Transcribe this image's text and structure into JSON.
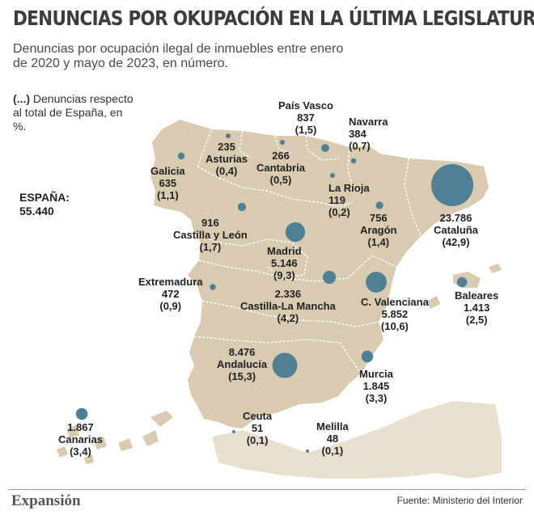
{
  "title": "DENUNCIAS POR OKUPACIÓN EN LA ÚLTIMA LEGISLATURA",
  "subtitle": "Denuncias por ocupación ilegal de inmuebles entre enero de 2020 y mayo de 2023, en número.",
  "legend": {
    "marker": "(...)",
    "text": "Denuncias respecto al total de España, en %."
  },
  "spain_total": {
    "label": "ESPAÑA:",
    "value": "55.440"
  },
  "colors": {
    "land": "#d8cbb0",
    "sea": "#ffffff",
    "circle": "#4e7f93",
    "border": "#ffffff"
  },
  "regions": [
    {
      "key": "galicia",
      "name": "Galicia",
      "count": "635",
      "pct": "(1,1)",
      "value": 635
    },
    {
      "key": "asturias",
      "name": "Asturias",
      "count": "235",
      "pct": "(0,4)",
      "value": 235
    },
    {
      "key": "cantabria",
      "name": "Cantabria",
      "count": "266",
      "pct": "(0,5)",
      "value": 266
    },
    {
      "key": "pais_vasco",
      "name": "País Vasco",
      "count": "837",
      "pct": "(1,5)",
      "value": 837
    },
    {
      "key": "navarra",
      "name": "Navarra",
      "count": "384",
      "pct": "(0,7)",
      "value": 384
    },
    {
      "key": "la_rioja",
      "name": "La Rioja",
      "count": "119",
      "pct": "(0,2)",
      "value": 119
    },
    {
      "key": "aragon",
      "name": "Aragón",
      "count": "756",
      "pct": "(1,4)",
      "value": 756
    },
    {
      "key": "cataluna",
      "name": "Cataluña",
      "count": "23.786",
      "pct": "(42,9)",
      "value": 23786
    },
    {
      "key": "castilla_leon",
      "name": "Castilla y León",
      "count": "916",
      "pct": "(1,7)",
      "value": 916
    },
    {
      "key": "madrid",
      "name": "Madrid",
      "count": "5.146",
      "pct": "(9,3)",
      "value": 5146
    },
    {
      "key": "extremadura",
      "name": "Extremadura",
      "count": "472",
      "pct": "(0,9)",
      "value": 472
    },
    {
      "key": "castilla_mancha",
      "name": "Castilla-La Mancha",
      "count": "2.336",
      "pct": "(4,2)",
      "value": 2336
    },
    {
      "key": "c_valenciana",
      "name": "C. Valenciana",
      "count": "5.852",
      "pct": "(10,6)",
      "value": 5852
    },
    {
      "key": "baleares",
      "name": "Baleares",
      "count": "1.413",
      "pct": "(2,5)",
      "value": 1413
    },
    {
      "key": "andalucia",
      "name": "Andalucía",
      "count": "8.476",
      "pct": "(15,3)",
      "value": 8476
    },
    {
      "key": "murcia",
      "name": "Murcia",
      "count": "1.845",
      "pct": "(3,3)",
      "value": 1845
    },
    {
      "key": "canarias",
      "name": "Canarias",
      "count": "1.867",
      "pct": "(3,4)",
      "value": 1867
    },
    {
      "key": "ceuta",
      "name": "Ceuta",
      "count": "51",
      "pct": "(0,1)",
      "value": 51
    },
    {
      "key": "melilla",
      "name": "Melilla",
      "count": "48",
      "pct": "(0,1)",
      "value": 48
    }
  ],
  "footer": {
    "brand": "Expansión",
    "source": "Fuente: Ministerio del Interior"
  }
}
